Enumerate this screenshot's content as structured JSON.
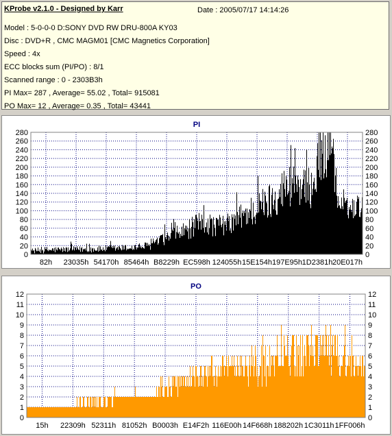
{
  "header": {
    "title": "KProbe v2.1.0 - Designed by Karr",
    "date": "Date : 2005/07/17 14:14:26",
    "lines": [
      "Model : 5-0-0-0 D:SONY    DVD RW DRU-800A  KY03",
      "Disc : DVD+R , CMC MAGM01 [CMC Magnetics Corporation]",
      "Speed : 4x",
      "ECC blocks sum (PI/PO) : 8/1",
      "Scanned range : 0 - 2303B3h",
      "PI Max= 287 , Average= 55.02 , Total= 915081",
      "PO Max= 12 , Average= 0.35 , Total= 43441"
    ]
  },
  "chart_data": [
    {
      "type": "bar",
      "title": "PI",
      "color": "#000000",
      "ylim": [
        0,
        280
      ],
      "yticks": [
        0,
        20,
        40,
        60,
        80,
        100,
        120,
        140,
        160,
        180,
        200,
        220,
        240,
        260,
        280
      ],
      "xtick_labels": [
        "82h",
        "23035h",
        "54170h",
        "85464h",
        "B8229h",
        "EC598h",
        "124055h",
        "15E154h",
        "197E95h",
        "1D2381h",
        "20E017h"
      ],
      "grid": true,
      "profile": [
        [
          0,
          8,
          6
        ],
        [
          0.05,
          10,
          8
        ],
        [
          0.1,
          11,
          7
        ],
        [
          0.2,
          12,
          8
        ],
        [
          0.3,
          15,
          8
        ],
        [
          0.36,
          20,
          10
        ],
        [
          0.4,
          35,
          14
        ],
        [
          0.45,
          50,
          20
        ],
        [
          0.5,
          65,
          28
        ],
        [
          0.53,
          75,
          30
        ],
        [
          0.55,
          65,
          25
        ],
        [
          0.6,
          70,
          25
        ],
        [
          0.65,
          95,
          35
        ],
        [
          0.7,
          110,
          45
        ],
        [
          0.73,
          130,
          45
        ],
        [
          0.76,
          150,
          50
        ],
        [
          0.8,
          170,
          55
        ],
        [
          0.83,
          140,
          50
        ],
        [
          0.86,
          180,
          55
        ],
        [
          0.89,
          240,
          70
        ],
        [
          0.905,
          280,
          80
        ],
        [
          0.915,
          200,
          60
        ],
        [
          0.925,
          115,
          25
        ],
        [
          0.95,
          105,
          25
        ],
        [
          1,
          110,
          25
        ]
      ]
    },
    {
      "type": "bar",
      "title": "PO",
      "color": "#ff9900",
      "ylim": [
        0,
        12
      ],
      "yticks": [
        0,
        1,
        2,
        3,
        4,
        5,
        6,
        7,
        8,
        9,
        10,
        11,
        12
      ],
      "xtick_labels": [
        "15h",
        "22309h",
        "52311h",
        "81052h",
        "B0003h",
        "E14F2h",
        "116E00h",
        "14F668h",
        "188202h",
        "1C3011h",
        "1FF006h"
      ],
      "grid": true,
      "profile": [
        [
          0,
          1,
          0.3
        ],
        [
          0.1,
          1,
          0.3
        ],
        [
          0.2,
          1.4,
          0.5
        ],
        [
          0.28,
          2,
          0.4
        ],
        [
          0.36,
          2,
          0.5
        ],
        [
          0.4,
          2.5,
          0.8
        ],
        [
          0.44,
          3,
          1.2
        ],
        [
          0.5,
          4,
          1.5
        ],
        [
          0.55,
          4.5,
          1.5
        ],
        [
          0.6,
          4.5,
          1.5
        ],
        [
          0.65,
          5,
          1.5
        ],
        [
          0.7,
          5,
          1.8
        ],
        [
          0.75,
          5.5,
          2
        ],
        [
          0.8,
          6,
          2.2
        ],
        [
          0.84,
          6.5,
          2.2
        ],
        [
          0.88,
          7,
          2.3
        ],
        [
          0.92,
          6,
          2
        ],
        [
          0.96,
          4.5,
          1.5
        ],
        [
          1,
          5,
          1.5
        ]
      ]
    }
  ]
}
